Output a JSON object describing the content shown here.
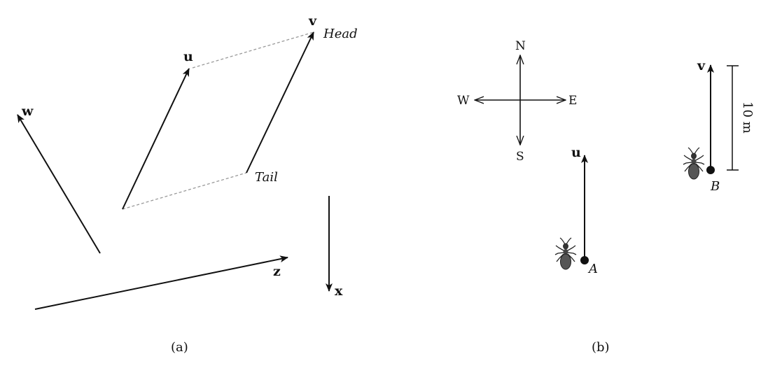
{
  "panel_a": {
    "vectors": {
      "u": "u",
      "v": "v",
      "w": "w",
      "z": "z",
      "x": "x"
    },
    "head_label": "Head",
    "tail_label": "Tail",
    "caption": "(a)"
  },
  "panel_b": {
    "compass": {
      "north": "N",
      "south": "S",
      "east": "E",
      "west": "W"
    },
    "vectors": {
      "u": "u",
      "v": "v"
    },
    "points": {
      "a": "A",
      "b": "B"
    },
    "scale_label": "10 m",
    "caption": "(b)"
  }
}
